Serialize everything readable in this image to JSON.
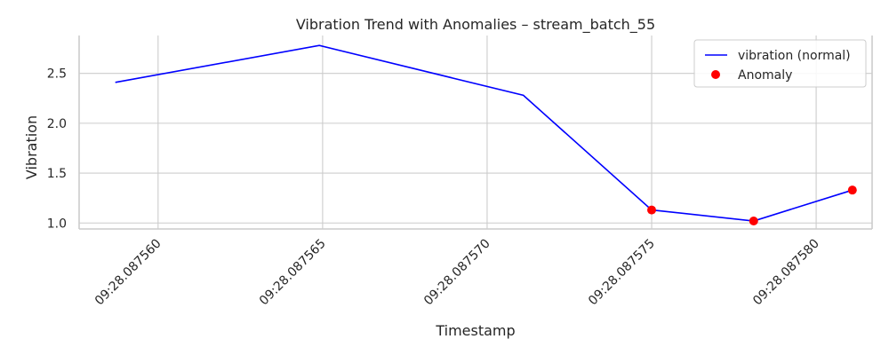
{
  "chart_data": {
    "type": "line",
    "title": "Vibration Trend with Anomalies – stream_batch_55",
    "xlabel": "Timestamp",
    "ylabel": "Vibration",
    "x_ticks": [
      {
        "value": 560,
        "label": "09:28.087560"
      },
      {
        "value": 565,
        "label": "09:28.087565"
      },
      {
        "value": 570,
        "label": "09:28.087570"
      },
      {
        "value": 575,
        "label": "09:28.087575"
      },
      {
        "value": 580,
        "label": "09:28.087580"
      }
    ],
    "y_ticks": [
      {
        "value": 1.0,
        "label": "1.0"
      },
      {
        "value": 1.5,
        "label": "1.5"
      },
      {
        "value": 2.0,
        "label": "2.0"
      },
      {
        "value": 2.5,
        "label": "2.5"
      }
    ],
    "xlim": [
      557.6,
      581.7
    ],
    "ylim": [
      0.94,
      2.88
    ],
    "grid": true,
    "legend_position": "top-right",
    "series": [
      {
        "name": "vibration (normal)",
        "kind": "line",
        "color": "#0000ff",
        "x": [
          558.7,
          564.9,
          571.1,
          575.0,
          578.1,
          581.1
        ],
        "y": [
          2.41,
          2.78,
          2.28,
          1.13,
          1.02,
          1.33
        ]
      },
      {
        "name": "Anomaly",
        "kind": "scatter",
        "color": "#ff0000",
        "x": [
          575.0,
          578.1,
          581.1
        ],
        "y": [
          1.13,
          1.02,
          1.33
        ]
      }
    ]
  }
}
